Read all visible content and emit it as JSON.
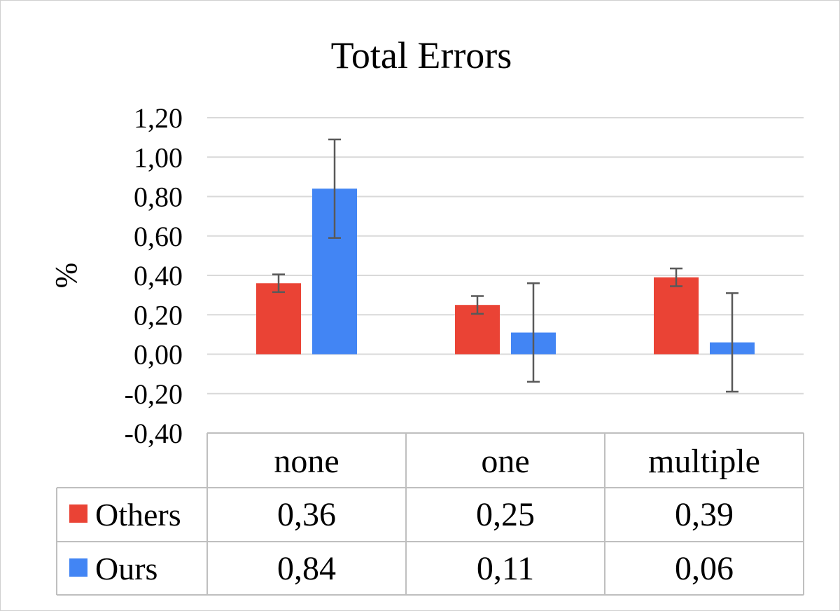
{
  "chart_data": {
    "type": "bar",
    "title": "Total Errors",
    "xlabel": "",
    "ylabel": "%",
    "categories": [
      "none",
      "one",
      "multiple"
    ],
    "series": [
      {
        "name": "Others",
        "color": "#EA4335",
        "values": [
          0.36,
          0.25,
          0.39
        ],
        "error": [
          0.045,
          0.045,
          0.045
        ]
      },
      {
        "name": "Ours",
        "color": "#4285F4",
        "values": [
          0.84,
          0.11,
          0.06
        ],
        "error": [
          0.25,
          0.25,
          0.25
        ]
      }
    ],
    "ylim": [
      -0.4,
      1.2
    ],
    "yticks": [
      1.2,
      1.0,
      0.8,
      0.6,
      0.4,
      0.2,
      0.0,
      -0.2,
      -0.4
    ],
    "ytick_labels": [
      "1,20",
      "1,00",
      "0,80",
      "0,60",
      "0,40",
      "0,20",
      "0,00",
      "-0,20",
      "-0,40"
    ],
    "grid": true,
    "legend": "data-table",
    "data_table": {
      "rows": [
        {
          "series": "Others",
          "cells": [
            "0,36",
            "0,25",
            "0,39"
          ]
        },
        {
          "series": "Ours",
          "cells": [
            "0,84",
            "0,11",
            "0,06"
          ]
        }
      ]
    }
  }
}
